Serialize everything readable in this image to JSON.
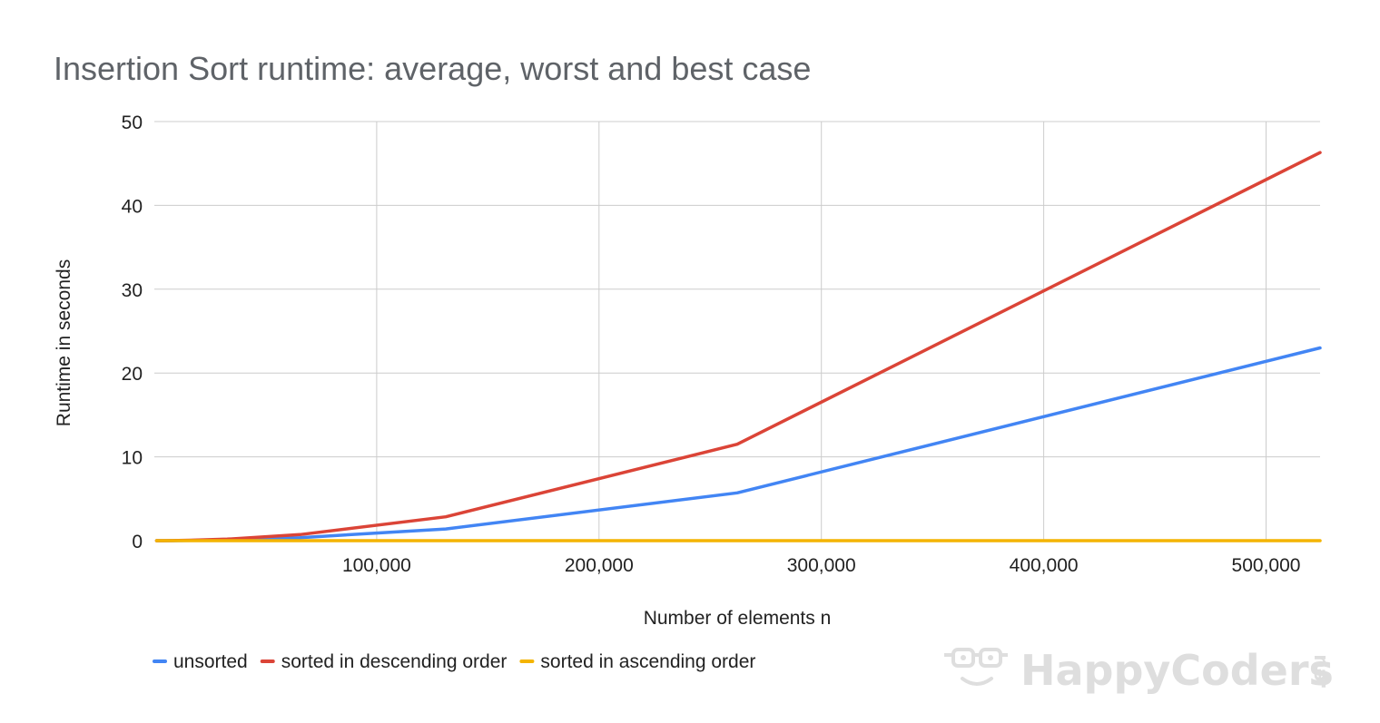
{
  "chart_data": {
    "type": "line",
    "title": "Insertion Sort runtime: average, worst and best case",
    "xlabel": "Number of elements n",
    "ylabel": "Runtime in seconds",
    "xlim": [
      0,
      524288
    ],
    "ylim": [
      0,
      50
    ],
    "xticks": [
      100000,
      200000,
      300000,
      400000,
      500000
    ],
    "xtick_labels": [
      "100,000",
      "200,000",
      "300,000",
      "400,000",
      "500,000"
    ],
    "yticks": [
      0,
      10,
      20,
      30,
      40,
      50
    ],
    "ytick_labels": [
      "0",
      "10",
      "20",
      "30",
      "40",
      "50"
    ],
    "grid": true,
    "legend_position": "bottom-left",
    "x": [
      1024,
      2048,
      4096,
      8192,
      16384,
      32768,
      65536,
      131072,
      262144,
      524288
    ],
    "series": [
      {
        "name": "unsorted",
        "color": "#4285f4",
        "values": [
          0.0,
          0.0,
          0.0,
          0.0,
          0.03,
          0.09,
          0.36,
          1.4,
          5.7,
          23.0
        ]
      },
      {
        "name": "sorted in descending order",
        "color": "#db4437",
        "values": [
          0.0,
          0.0,
          0.0,
          0.01,
          0.05,
          0.18,
          0.72,
          2.85,
          11.5,
          46.3
        ]
      },
      {
        "name": "sorted in ascending order",
        "color": "#f4b400",
        "values": [
          0.0,
          0.0,
          0.0,
          0.0,
          0.0,
          0.0,
          0.0,
          0.0,
          0.0,
          0.0
        ]
      }
    ]
  },
  "watermark": {
    "text": "HappyCoders",
    "suffix": ".eu",
    "icon": "glasses-face-icon"
  }
}
